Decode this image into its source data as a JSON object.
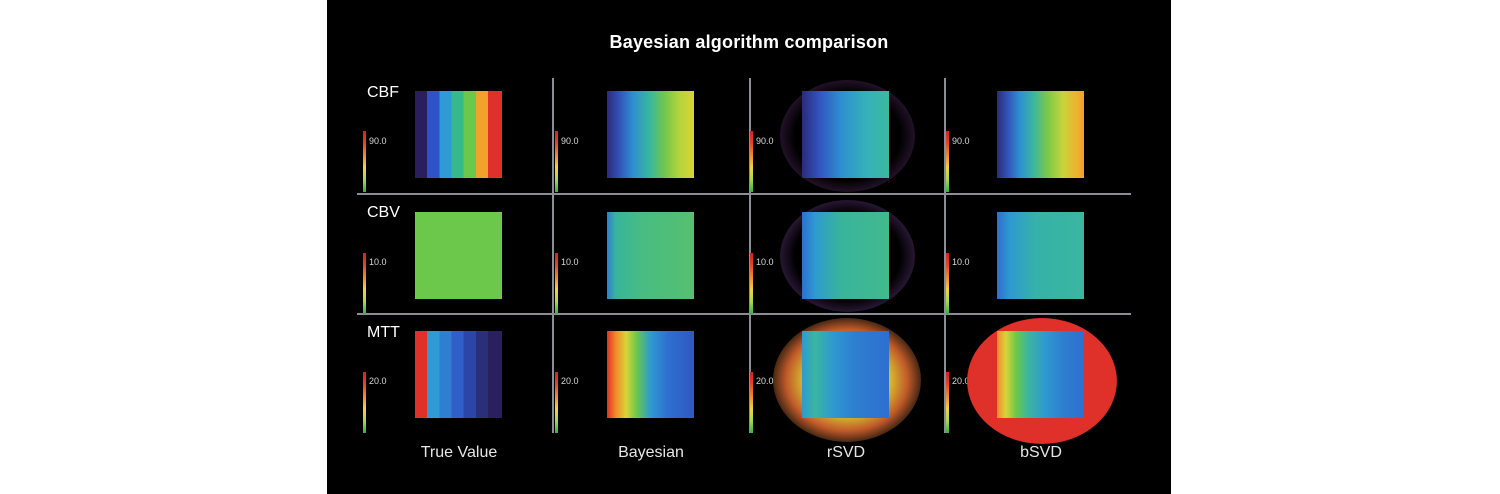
{
  "title": "Bayesian algorithm comparison",
  "rows": [
    {
      "label": "CBF",
      "scale": "90.0"
    },
    {
      "label": "CBV",
      "scale": "10.0"
    },
    {
      "label": "MTT",
      "scale": "20.0"
    }
  ],
  "columns": [
    "True Value",
    "Bayesian",
    "rSVD",
    "bSVD"
  ],
  "colormap": [
    "#1f2a6b",
    "#2e56c8",
    "#2ea0d0",
    "#3bbf8c",
    "#6cc94a",
    "#c8d83a",
    "#f2a22c",
    "#e0302a"
  ]
}
